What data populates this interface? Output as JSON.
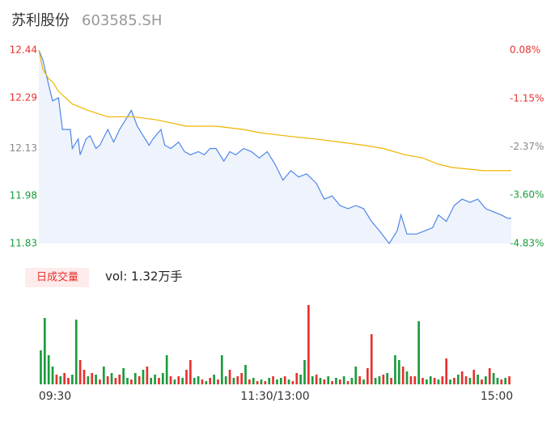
{
  "title": "苏利股份",
  "code": "603585.SH",
  "chart_data": [
    {
      "type": "line",
      "xlim": [
        0,
        240
      ],
      "ylim": [
        11.83,
        12.44
      ],
      "yticks": [
        12.44,
        12.29,
        12.13,
        11.98,
        11.83
      ],
      "ytick_colors": [
        "#e8312f",
        "#e8312f",
        "#888888",
        "#1a9c3c",
        "#1a9c3c"
      ],
      "y2lim": [
        -4.83,
        0.08
      ],
      "y2ticks": [
        {
          "value": 0.08,
          "label": "0.08%"
        },
        {
          "value": -1.15,
          "label": "-1.15%"
        },
        {
          "value": -2.37,
          "label": "-2.37%"
        },
        {
          "value": -3.6,
          "label": "-3.60%"
        },
        {
          "value": -4.83,
          "label": "-4.83%"
        }
      ],
      "y2tick_colors": [
        "#e8312f",
        "#e8312f",
        "#888888",
        "#1a9c3c",
        "#1a9c3c"
      ],
      "series": [
        {
          "color": "#4f86e8",
          "fill": "#eef3fc",
          "x": [
            0,
            2,
            5,
            7,
            10,
            12,
            16,
            17,
            20,
            21,
            24,
            26,
            29,
            31,
            35,
            38,
            41,
            44,
            47,
            50,
            53,
            56,
            58,
            62,
            64,
            67,
            71,
            74,
            77,
            81,
            84,
            87,
            90,
            94,
            97,
            100,
            104,
            108,
            112,
            116,
            120,
            124,
            128,
            132,
            136,
            141,
            145,
            149,
            153,
            157,
            161,
            165,
            169,
            173,
            178,
            182,
            184,
            187,
            192,
            196,
            200,
            203,
            207,
            211,
            215,
            219,
            223,
            227,
            231,
            235,
            238,
            240
          ],
          "values": [
            12.44,
            12.41,
            12.33,
            12.28,
            12.29,
            12.19,
            12.19,
            12.13,
            12.16,
            12.11,
            12.16,
            12.17,
            12.13,
            12.14,
            12.19,
            12.15,
            12.19,
            12.22,
            12.25,
            12.2,
            12.17,
            12.14,
            12.16,
            12.19,
            12.14,
            12.13,
            12.15,
            12.12,
            12.11,
            12.12,
            12.11,
            12.13,
            12.13,
            12.09,
            12.12,
            12.11,
            12.13,
            12.12,
            12.1,
            12.12,
            12.08,
            12.03,
            12.06,
            12.04,
            12.05,
            12.02,
            11.97,
            11.98,
            11.95,
            11.94,
            11.95,
            11.94,
            11.9,
            11.87,
            11.83,
            11.87,
            11.92,
            11.86,
            11.86,
            11.87,
            11.88,
            11.92,
            11.9,
            11.95,
            11.97,
            11.96,
            11.97,
            11.94,
            11.93,
            11.92,
            11.91,
            11.91
          ]
        },
        {
          "color": "#f0b400",
          "x": [
            0,
            2,
            5,
            7,
            10,
            17,
            25,
            35,
            48,
            60,
            75,
            90,
            104,
            112,
            125,
            140,
            153,
            165,
            175,
            186,
            195,
            203,
            210,
            226,
            240
          ],
          "values": [
            12.44,
            12.38,
            12.35,
            12.34,
            12.31,
            12.27,
            12.25,
            12.23,
            12.23,
            12.22,
            12.2,
            12.2,
            12.19,
            12.18,
            12.17,
            12.16,
            12.15,
            12.14,
            12.13,
            12.11,
            12.1,
            12.08,
            12.07,
            12.06,
            12.06
          ]
        }
      ]
    },
    {
      "type": "volume",
      "label": "日成交量",
      "vol_text": "vol: 1.32万手",
      "xlim": [
        0,
        240
      ],
      "ylim": [
        0,
        100
      ],
      "xticks": [
        {
          "value": 0,
          "label": "09:30"
        },
        {
          "value": 120,
          "label": "11:30/13:00"
        },
        {
          "value": 240,
          "label": "15:00"
        }
      ],
      "up_color": "#e8312f",
      "down_color": "#1a9c3c",
      "x": [
        1,
        3,
        5,
        7,
        9,
        11,
        13,
        15,
        17,
        19,
        21,
        23,
        25,
        27,
        29,
        31,
        33,
        35,
        37,
        39,
        41,
        43,
        45,
        47,
        49,
        51,
        53,
        55,
        57,
        59,
        61,
        63,
        65,
        67,
        69,
        71,
        73,
        75,
        77,
        79,
        81,
        83,
        85,
        87,
        89,
        91,
        93,
        95,
        97,
        99,
        101,
        103,
        105,
        107,
        109,
        111,
        113,
        115,
        117,
        119,
        121,
        123,
        125,
        127,
        129,
        131,
        133,
        135,
        137,
        139,
        141,
        143,
        145,
        147,
        149,
        151,
        153,
        155,
        157,
        159,
        161,
        163,
        165,
        167,
        169,
        171,
        173,
        175,
        177,
        179,
        181,
        183,
        185,
        187,
        189,
        191,
        193,
        195,
        197,
        199,
        201,
        203,
        205,
        207,
        209,
        211,
        213,
        215,
        217,
        219,
        221,
        223,
        225,
        227,
        229,
        231,
        233,
        235,
        237,
        239
      ],
      "values": [
        42,
        82,
        36,
        22,
        12,
        10,
        14,
        8,
        12,
        80,
        30,
        18,
        10,
        14,
        12,
        6,
        22,
        10,
        14,
        8,
        12,
        20,
        8,
        6,
        14,
        10,
        18,
        22,
        8,
        12,
        8,
        14,
        36,
        10,
        6,
        10,
        8,
        18,
        30,
        8,
        10,
        6,
        4,
        8,
        12,
        6,
        36,
        10,
        18,
        8,
        10,
        14,
        24,
        6,
        8,
        4,
        6,
        4,
        8,
        10,
        6,
        8,
        10,
        6,
        4,
        14,
        12,
        30,
        98,
        10,
        12,
        8,
        6,
        10,
        4,
        8,
        6,
        10,
        4,
        8,
        22,
        10,
        6,
        20,
        62,
        8,
        10,
        12,
        14,
        8,
        36,
        30,
        22,
        16,
        10,
        10,
        78,
        8,
        6,
        10,
        8,
        6,
        10,
        32,
        6,
        8,
        12,
        16,
        10,
        8,
        18,
        12,
        6,
        10,
        20,
        14,
        8,
        6,
        8,
        10
      ],
      "up": [
        false,
        false,
        false,
        false,
        true,
        false,
        true,
        true,
        false,
        false,
        true,
        true,
        false,
        true,
        false,
        true,
        false,
        true,
        false,
        true,
        true,
        false,
        false,
        true,
        false,
        true,
        false,
        true,
        false,
        false,
        true,
        false,
        false,
        true,
        false,
        true,
        false,
        true,
        true,
        false,
        false,
        true,
        false,
        true,
        false,
        true,
        false,
        false,
        true,
        false,
        true,
        true,
        false,
        true,
        false,
        true,
        false,
        true,
        false,
        true,
        false,
        false,
        true,
        false,
        true,
        true,
        false,
        false,
        true,
        false,
        true,
        false,
        true,
        false,
        true,
        false,
        true,
        false,
        true,
        false,
        false,
        true,
        false,
        true,
        true,
        false,
        false,
        true,
        false,
        true,
        false,
        false,
        true,
        false,
        true,
        true,
        false,
        true,
        false,
        false,
        true,
        false,
        true,
        true,
        false,
        true,
        false,
        true,
        true,
        false,
        true,
        false,
        true,
        false,
        true,
        false,
        false,
        true,
        false,
        true
      ]
    }
  ]
}
